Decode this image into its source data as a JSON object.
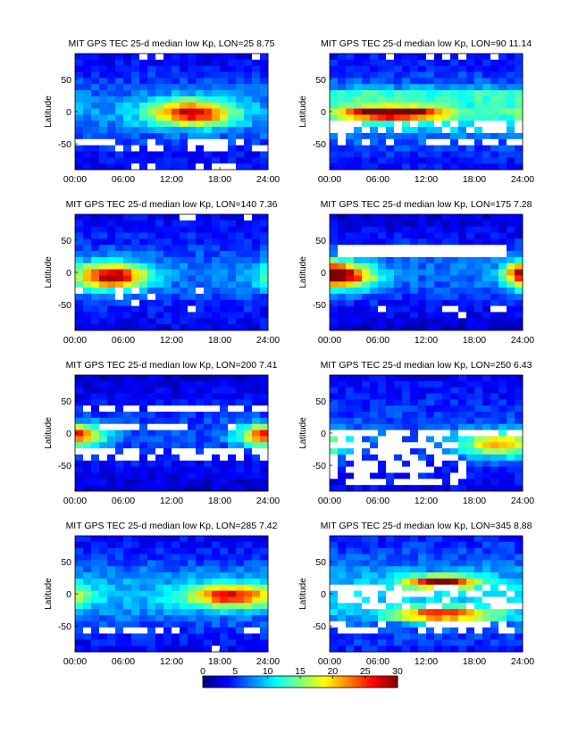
{
  "chart_data": {
    "type": "heatmap",
    "colormap": "jet",
    "clim": [
      0,
      30
    ],
    "colorbar": {
      "ticks": [
        "0",
        "5",
        "10",
        "15",
        "20",
        "25",
        "30"
      ]
    },
    "x_ticks": [
      "00:00",
      "06:00",
      "12:00",
      "18:00",
      "24:00"
    ],
    "xlim": [
      0,
      24
    ],
    "y_ticks": [
      "50",
      "0",
      "-50"
    ],
    "ylim": [
      -90,
      90
    ],
    "ylabel": "Latitude",
    "panels": [
      {
        "title": "MIT GPS TEC 25-d median low Kp, LON=25   8.75",
        "lon": 25,
        "value": 8.75,
        "feature": "TEC maximum ~20-28 TECU centred near 12:00-18:00 LT at 0-10 lat; white data gaps near -50 lat"
      },
      {
        "title": "MIT GPS TEC 25-d median low Kp, LON=90  11.14",
        "lon": 90,
        "value": 11.14,
        "feature": "strong equatorial maximum ~30 TECU near 06:00-12:00 LT; scattered white gaps -20 to -60 lat"
      },
      {
        "title": "MIT GPS TEC 25-d median low Kp, LON=140   7.36",
        "lon": 140,
        "value": 7.36,
        "feature": "maximum ~25 TECU near 03:00-06:00 LT at -10 lat"
      },
      {
        "title": "MIT GPS TEC 25-d median low Kp, LON=175   7.28",
        "lon": 175,
        "value": 7.28,
        "feature": "maximum ~22 TECU near 02:00 LT at -10 lat; white gap band near 30-40 lat"
      },
      {
        "title": "MIT GPS TEC 25-d median low Kp, LON=200   7.41",
        "lon": 200,
        "value": 7.41,
        "feature": "maxima ~22 TECU at day boundaries near 0 lat; white gap bands near 40 and -40 lat"
      },
      {
        "title": "MIT GPS TEC 25-d median low Kp, LON=250   6.43",
        "lon": 250,
        "value": 6.43,
        "feature": "maximum ~20 TECU near 21:00 LT at -20 lat; large white gaps 0 to -80 lat"
      },
      {
        "title": "MIT GPS TEC 25-d median low Kp, LON=285   7.42",
        "lon": 285,
        "value": 7.42,
        "feature": "maximum ~22 TECU near 18:00-21:00 LT at 0 lat"
      },
      {
        "title": "MIT GPS TEC 25-d median low Kp, LON=345   8.88",
        "lon": 345,
        "value": 8.88,
        "feature": "maxima ~28 TECU near 14:00 LT at 20 lat and near -30 lat; many white gaps"
      }
    ]
  }
}
